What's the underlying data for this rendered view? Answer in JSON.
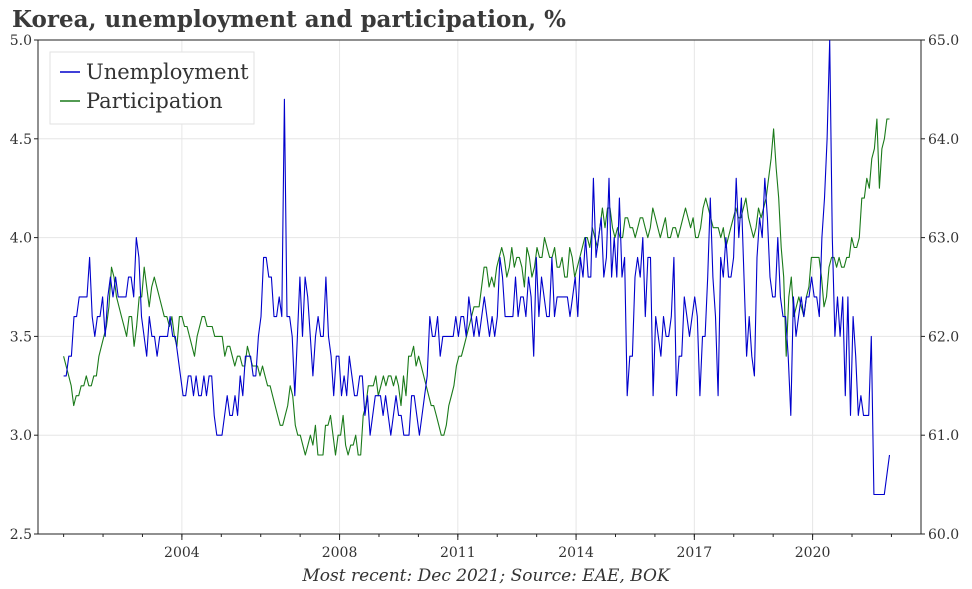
{
  "chart_data": {
    "type": "line",
    "title": "Korea, unemployment and participation, %",
    "caption": "Most recent: Dec 2021; Source: EAE, BOK",
    "x_tick_labels": [
      "2004",
      "2008",
      "2011",
      "2014",
      "2017",
      "2020"
    ],
    "x_range": [
      2000.35,
      2022.75
    ],
    "left_axis": {
      "range": [
        2.5,
        5.0
      ],
      "ticks": [
        2.5,
        3.0,
        3.5,
        4.0,
        4.5,
        5.0
      ],
      "tick_labels": [
        "2.5",
        "3.0",
        "3.5",
        "4.0",
        "4.5",
        "5.0"
      ]
    },
    "right_axis": {
      "range": [
        60.0,
        65.0
      ],
      "ticks": [
        60.0,
        61.0,
        62.0,
        63.0,
        64.0,
        65.0
      ],
      "tick_labels": [
        "60.0",
        "61.0",
        "62.0",
        "63.0",
        "64.0",
        "65.0"
      ]
    },
    "grid": true,
    "legend_position": "top-left",
    "series": [
      {
        "name": "Unemployment",
        "axis": "left",
        "color": "#0000cc",
        "x_start": 2001.0,
        "x_end": 2021.95,
        "values": [
          3.3,
          3.3,
          3.4,
          3.4,
          3.6,
          3.6,
          3.7,
          3.7,
          3.7,
          3.7,
          3.9,
          3.6,
          3.5,
          3.6,
          3.6,
          3.7,
          3.5,
          3.7,
          3.8,
          3.7,
          3.8,
          3.7,
          3.7,
          3.7,
          3.7,
          3.8,
          3.8,
          3.7,
          4.0,
          3.9,
          3.6,
          3.5,
          3.4,
          3.6,
          3.5,
          3.5,
          3.4,
          3.5,
          3.5,
          3.5,
          3.5,
          3.6,
          3.5,
          3.5,
          3.4,
          3.3,
          3.2,
          3.2,
          3.3,
          3.3,
          3.2,
          3.3,
          3.2,
          3.2,
          3.3,
          3.2,
          3.3,
          3.3,
          3.1,
          3.0,
          3.0,
          3.0,
          3.1,
          3.2,
          3.1,
          3.1,
          3.2,
          3.1,
          3.3,
          3.2,
          3.4,
          3.4,
          3.4,
          3.3,
          3.3,
          3.5,
          3.6,
          3.9,
          3.9,
          3.8,
          3.8,
          3.6,
          3.6,
          3.7,
          3.6,
          4.7,
          3.6,
          3.6,
          3.5,
          3.2,
          3.5,
          3.8,
          3.5,
          3.8,
          3.7,
          3.5,
          3.3,
          3.5,
          3.6,
          3.5,
          3.5,
          3.8,
          3.5,
          3.4,
          3.2,
          3.4,
          3.4,
          3.2,
          3.3,
          3.2,
          3.4,
          3.3,
          3.2,
          3.2,
          3.3,
          3.3,
          3.1,
          3.2,
          3.0,
          3.1,
          3.2,
          3.2,
          3.2,
          3.1,
          3.2,
          3.1,
          3.0,
          3.1,
          3.2,
          3.1,
          3.1,
          3.0,
          3.0,
          3.0,
          3.2,
          3.2,
          3.1,
          3.0,
          3.1,
          3.2,
          3.3,
          3.6,
          3.5,
          3.5,
          3.6,
          3.4,
          3.5,
          3.5,
          3.5,
          3.5,
          3.5,
          3.6,
          3.5,
          3.6,
          3.6,
          3.5,
          3.7,
          3.6,
          3.5,
          3.6,
          3.5,
          3.6,
          3.7,
          3.6,
          3.5,
          3.6,
          3.5,
          3.6,
          3.9,
          3.8,
          3.6,
          3.6,
          3.6,
          3.6,
          3.8,
          3.6,
          3.7,
          3.7,
          3.6,
          3.8,
          3.7,
          3.4,
          3.9,
          3.6,
          3.8,
          3.7,
          3.6,
          3.6,
          3.9,
          3.6,
          3.7,
          3.7,
          3.7,
          3.7,
          3.7,
          3.6,
          3.7,
          3.8,
          3.6,
          3.9,
          3.8,
          4.0,
          3.8,
          3.8,
          4.3,
          3.9,
          4.0,
          4.1,
          3.8,
          3.9,
          4.3,
          3.8,
          4.0,
          3.8,
          4.2,
          3.8,
          3.9,
          3.2,
          3.4,
          3.4,
          3.8,
          3.9,
          3.8,
          4.0,
          3.6,
          3.9,
          3.9,
          3.2,
          3.6,
          3.5,
          3.4,
          3.6,
          3.5,
          3.5,
          3.6,
          3.9,
          3.2,
          3.4,
          3.4,
          3.7,
          3.6,
          3.5,
          3.6,
          3.7,
          3.6,
          3.2,
          3.5,
          3.5,
          3.8,
          4.2,
          3.8,
          3.6,
          3.2,
          3.9,
          3.8,
          4.0,
          3.8,
          3.8,
          3.9,
          4.3,
          4.0,
          4.2,
          3.8,
          3.4,
          3.6,
          3.4,
          3.3,
          3.9,
          4.1,
          4.0,
          4.3,
          4.1,
          3.8,
          3.7,
          3.7,
          4.0,
          3.7,
          3.6,
          3.6,
          3.4,
          3.1,
          3.7,
          3.5,
          3.6,
          3.7,
          3.6,
          3.7,
          3.7,
          3.8,
          3.7,
          3.7,
          3.6,
          4.0,
          4.2,
          4.5,
          5.0,
          4.0,
          3.5,
          3.7,
          3.5,
          3.7,
          3.2,
          3.7,
          3.1,
          3.6,
          3.4,
          3.1,
          3.2,
          3.1,
          3.1,
          3.1,
          3.5,
          2.7,
          2.7,
          2.7,
          2.7,
          2.7,
          2.8,
          2.9
        ]
      },
      {
        "name": "Participation",
        "axis": "right",
        "color": "#1a7a1a",
        "x_start": 2001.0,
        "x_end": 2021.95,
        "values": [
          61.8,
          61.7,
          61.6,
          61.5,
          61.3,
          61.4,
          61.4,
          61.5,
          61.5,
          61.6,
          61.5,
          61.5,
          61.6,
          61.6,
          61.8,
          61.9,
          62.0,
          62.1,
          62.3,
          62.7,
          62.6,
          62.4,
          62.3,
          62.2,
          62.1,
          62.0,
          62.2,
          62.2,
          61.9,
          62.1,
          62.4,
          62.4,
          62.7,
          62.5,
          62.3,
          62.5,
          62.6,
          62.5,
          62.4,
          62.3,
          62.2,
          62.2,
          62.1,
          62.2,
          62.0,
          61.9,
          62.2,
          62.2,
          62.1,
          62.1,
          62.0,
          61.9,
          61.8,
          62.0,
          62.1,
          62.2,
          62.2,
          62.1,
          62.1,
          62.1,
          62.0,
          62.0,
          62.0,
          62.0,
          61.8,
          61.9,
          61.9,
          61.8,
          61.7,
          61.8,
          61.8,
          61.7,
          61.7,
          61.9,
          61.8,
          61.7,
          61.7,
          61.7,
          61.6,
          61.7,
          61.6,
          61.5,
          61.5,
          61.4,
          61.3,
          61.2,
          61.1,
          61.1,
          61.2,
          61.3,
          61.5,
          61.4,
          61.1,
          61.0,
          61.0,
          60.9,
          60.8,
          60.9,
          61.0,
          60.9,
          61.1,
          60.8,
          60.8,
          60.8,
          61.1,
          61.1,
          61.2,
          61.0,
          60.8,
          61.0,
          61.0,
          61.2,
          60.9,
          60.8,
          60.9,
          60.9,
          61.0,
          60.8,
          60.8,
          61.2,
          61.3,
          61.5,
          61.5,
          61.5,
          61.6,
          61.4,
          61.5,
          61.6,
          61.5,
          61.6,
          61.6,
          61.5,
          61.6,
          61.5,
          61.3,
          61.6,
          61.4,
          61.8,
          61.8,
          61.9,
          61.7,
          61.8,
          61.7,
          61.6,
          61.5,
          61.4,
          61.3,
          61.3,
          61.2,
          61.1,
          61.0,
          61.0,
          61.1,
          61.3,
          61.4,
          61.5,
          61.7,
          61.8,
          61.8,
          61.9,
          62.0,
          62.1,
          62.2,
          62.3,
          62.3,
          62.3,
          62.5,
          62.7,
          62.7,
          62.5,
          62.6,
          62.5,
          62.7,
          62.8,
          62.9,
          62.8,
          62.6,
          62.7,
          62.9,
          62.7,
          62.8,
          62.8,
          62.7,
          62.5,
          62.9,
          62.8,
          62.6,
          62.7,
          62.9,
          62.8,
          62.8,
          63.0,
          62.9,
          62.8,
          62.8,
          62.9,
          62.7,
          62.7,
          62.8,
          62.6,
          62.6,
          62.9,
          62.8,
          62.6,
          62.7,
          62.8,
          62.9,
          63.0,
          63.0,
          62.9,
          63.1,
          63.0,
          62.9,
          63.1,
          63.3,
          63.1,
          63.3,
          63.3,
          63.1,
          63.0,
          63.1,
          63.0,
          63.0,
          63.2,
          63.2,
          63.1,
          63.1,
          63.0,
          63.1,
          63.2,
          63.2,
          63.1,
          63.0,
          63.1,
          63.3,
          63.2,
          63.1,
          63.0,
          63.1,
          63.2,
          63.0,
          63.0,
          63.1,
          63.1,
          63.0,
          63.1,
          63.2,
          63.3,
          63.2,
          63.1,
          63.2,
          63.0,
          63.0,
          63.1,
          63.3,
          63.4,
          63.3,
          63.2,
          63.1,
          63.1,
          63.1,
          63.0,
          63.1,
          62.9,
          63.0,
          63.1,
          63.2,
          63.3,
          63.2,
          63.2,
          63.3,
          63.4,
          63.2,
          63.1,
          63.0,
          63.1,
          63.3,
          63.2,
          63.3,
          63.4,
          63.6,
          63.8,
          64.1,
          63.7,
          63.4,
          62.9,
          62.6,
          61.8,
          62.4,
          62.6,
          62.2,
          62.3,
          62.4,
          62.3,
          62.2,
          62.4,
          62.5,
          62.8,
          62.8,
          62.8,
          62.8,
          62.6,
          62.3,
          62.4,
          62.7,
          62.8,
          62.8,
          62.7,
          62.8,
          62.7,
          62.7,
          62.8,
          62.8,
          63.0,
          62.9,
          62.9,
          63.0,
          63.4,
          63.4,
          63.6,
          63.5,
          63.8,
          63.9,
          64.2,
          63.5,
          63.9,
          64.0,
          64.2,
          64.2
        ]
      }
    ]
  }
}
